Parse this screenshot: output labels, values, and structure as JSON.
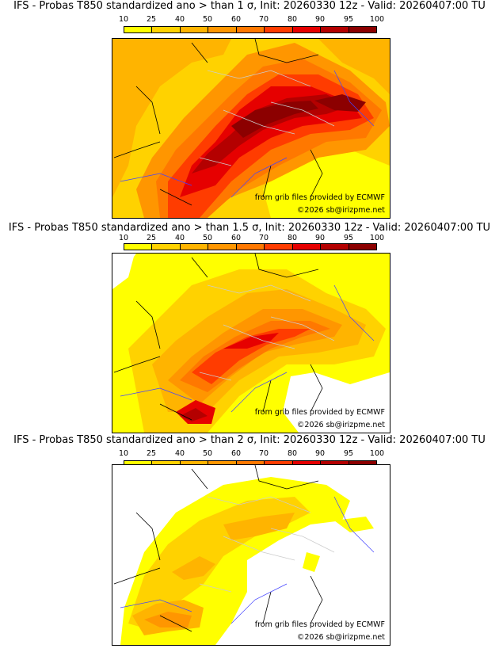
{
  "colorbar": {
    "levels": [
      "10",
      "25",
      "40",
      "50",
      "60",
      "70",
      "80",
      "90",
      "95",
      "100"
    ],
    "colors": [
      "#ffff00",
      "#ffd200",
      "#ffb400",
      "#ff9600",
      "#ff7800",
      "#ff3c00",
      "#e60000",
      "#b40000",
      "#8c0000"
    ]
  },
  "panels": [
    {
      "title": "IFS - Probas T850  standardized ano > than 1 σ, Init: 20260330 12z - Valid: 20260407:00 TU",
      "credit_source": "from grib files provided by ECMWF",
      "credit_copyright": "©2026 sb@irizpme.net"
    },
    {
      "title": "IFS - Probas T850  standardized ano > than 1.5 σ, Init: 20260330 12z - Valid: 20260407:00 TU",
      "credit_source": "from grib files provided by ECMWF",
      "credit_copyright": "©2026 sb@irizpme.net"
    },
    {
      "title": "IFS - Probas T850  standardized ano > than 2 σ, Init: 20260330 12z - Valid: 20260407:00 TU",
      "credit_source": "from grib files provided by ECMWF",
      "credit_copyright": "©2026 sb@irizpme.net"
    }
  ]
}
